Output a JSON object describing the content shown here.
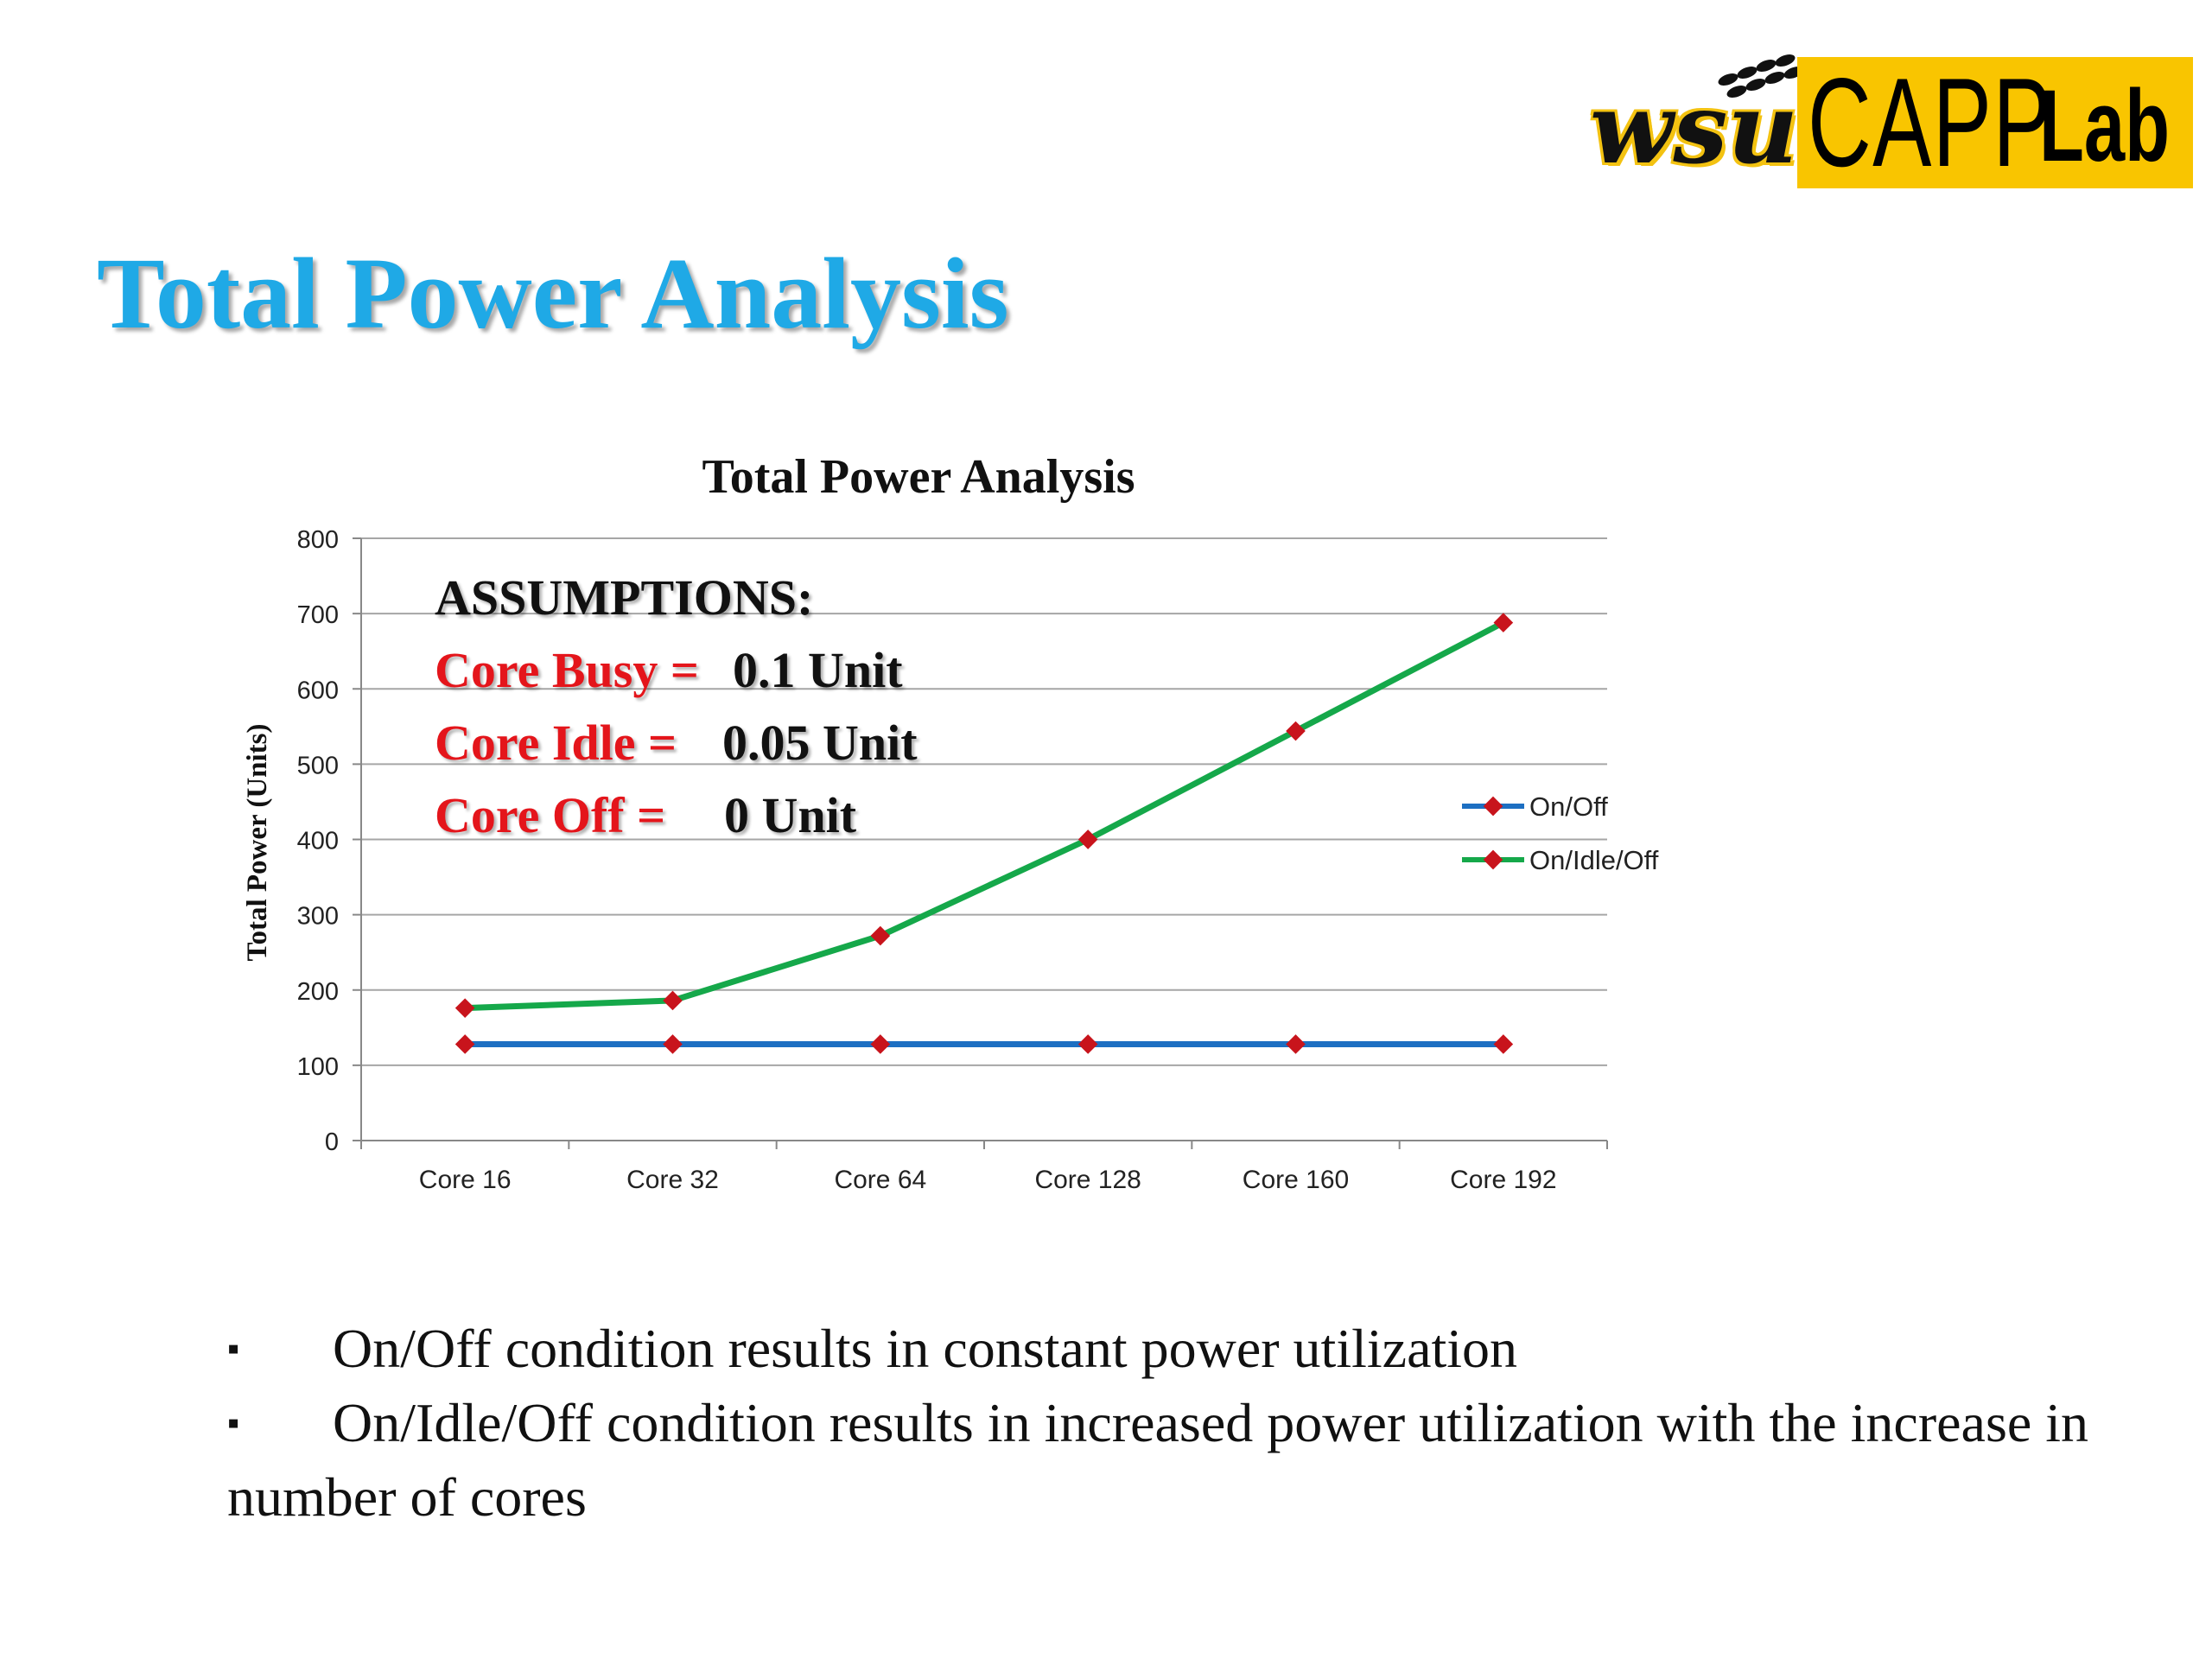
{
  "slide": {
    "title": "Total Power Analysis",
    "logo": {
      "left_text": "wsu",
      "box_text_1": "CAPP",
      "box_text_2": "Lab"
    }
  },
  "assumptions": {
    "heading": "ASSUMPTIONS:",
    "rows": [
      {
        "label": "Core Busy =",
        "value": "0.1 Unit"
      },
      {
        "label": "Core Idle =",
        "value": "0.05 Unit"
      },
      {
        "label": "Core Off =",
        "value": "0 Unit"
      }
    ]
  },
  "bullets": [
    "On/Off condition results in constant power utilization",
    "On/Idle/Off condition results in increased power utilization with the increase in number of cores"
  ],
  "bullet_marker": "▪",
  "chart_data": {
    "type": "line",
    "title": "Total Power Analysis",
    "xlabel": "",
    "ylabel": "Total Power (Units)",
    "categories": [
      "Core 16",
      "Core 32",
      "Core 64",
      "Core 128",
      "Core 160",
      "Core 192"
    ],
    "ylim": [
      0,
      800
    ],
    "yticks": [
      0,
      100,
      200,
      300,
      400,
      500,
      600,
      700,
      800
    ],
    "grid": true,
    "legend_position": "right",
    "series": [
      {
        "name": "On/Off",
        "values": [
          128,
          128,
          128,
          128,
          128,
          128
        ],
        "color": "#1d6fc2",
        "marker_color": "#c8141c"
      },
      {
        "name": "On/Idle/Off",
        "values": [
          176,
          186,
          272,
          400,
          544,
          688
        ],
        "color": "#15a84a",
        "marker_color": "#c8141c"
      }
    ]
  }
}
